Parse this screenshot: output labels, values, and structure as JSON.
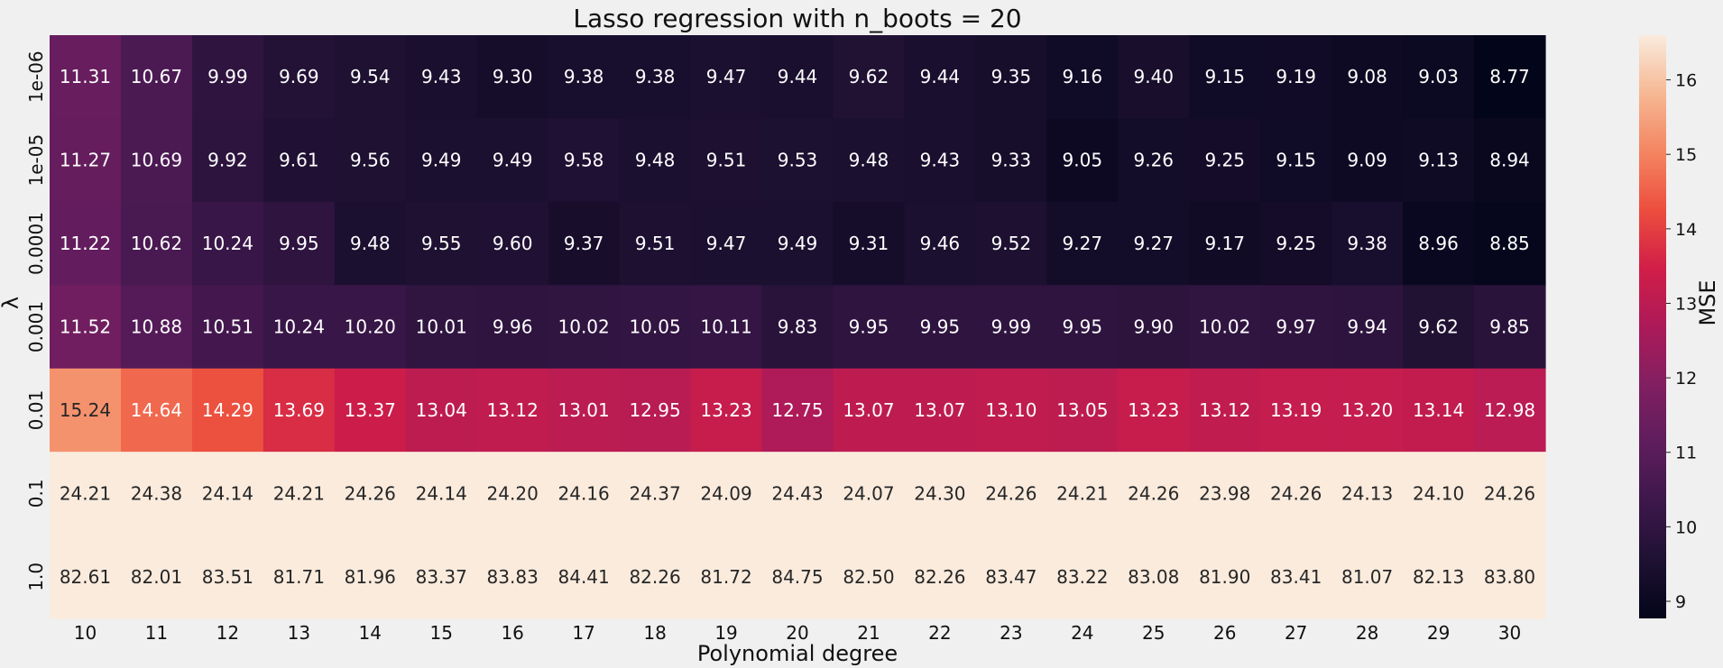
{
  "chart_data": {
    "type": "heatmap",
    "title": "Lasso regression with n_boots = 20",
    "xlabel": "Polynomial degree",
    "ylabel": "λ",
    "colorbar_label": "MSE",
    "x": [
      "10",
      "11",
      "12",
      "13",
      "14",
      "15",
      "16",
      "17",
      "18",
      "19",
      "20",
      "21",
      "22",
      "23",
      "24",
      "25",
      "26",
      "27",
      "28",
      "29",
      "30"
    ],
    "y": [
      "1e-06",
      "1e-05",
      "0.0001",
      "0.001",
      "0.01",
      "0.1",
      "1.0"
    ],
    "values": [
      [
        11.31,
        10.67,
        9.99,
        9.69,
        9.54,
        9.43,
        9.3,
        9.38,
        9.38,
        9.47,
        9.44,
        9.62,
        9.44,
        9.35,
        9.16,
        9.4,
        9.15,
        9.19,
        9.08,
        9.03,
        8.77
      ],
      [
        11.27,
        10.69,
        9.92,
        9.61,
        9.56,
        9.49,
        9.49,
        9.58,
        9.48,
        9.51,
        9.53,
        9.48,
        9.43,
        9.33,
        9.05,
        9.26,
        9.25,
        9.15,
        9.09,
        9.13,
        8.94
      ],
      [
        11.22,
        10.62,
        10.24,
        9.95,
        9.48,
        9.55,
        9.6,
        9.37,
        9.51,
        9.47,
        9.49,
        9.31,
        9.46,
        9.52,
        9.27,
        9.27,
        9.17,
        9.25,
        9.38,
        8.96,
        8.85
      ],
      [
        11.52,
        10.88,
        10.51,
        10.24,
        10.2,
        10.01,
        9.96,
        10.02,
        10.05,
        10.11,
        9.83,
        9.95,
        9.95,
        9.99,
        9.95,
        9.9,
        10.02,
        9.97,
        9.94,
        9.62,
        9.85
      ],
      [
        15.24,
        14.64,
        14.29,
        13.69,
        13.37,
        13.04,
        13.12,
        13.01,
        12.95,
        13.23,
        12.75,
        13.07,
        13.07,
        13.1,
        13.05,
        13.23,
        13.12,
        13.19,
        13.2,
        13.14,
        12.98
      ],
      [
        24.21,
        24.38,
        24.14,
        24.21,
        24.26,
        24.14,
        24.2,
        24.16,
        24.37,
        24.09,
        24.43,
        24.07,
        24.3,
        24.26,
        24.21,
        24.26,
        23.98,
        24.26,
        24.13,
        24.1,
        24.26
      ],
      [
        82.61,
        82.01,
        83.51,
        81.71,
        81.96,
        83.37,
        83.83,
        84.41,
        82.26,
        81.72,
        84.75,
        82.5,
        82.26,
        83.47,
        83.22,
        83.08,
        81.9,
        83.41,
        81.07,
        82.13,
        83.8
      ]
    ],
    "value_format": "2 decimals",
    "colormap": "rocket",
    "color_range": [
      8.77,
      16.6
    ],
    "colorbar_ticks": [
      9,
      10,
      11,
      12,
      13,
      14,
      15,
      16
    ],
    "colors": {
      "background": "#f0f0f0",
      "text_dark": "#262626",
      "text_light": "#ffffff"
    }
  }
}
